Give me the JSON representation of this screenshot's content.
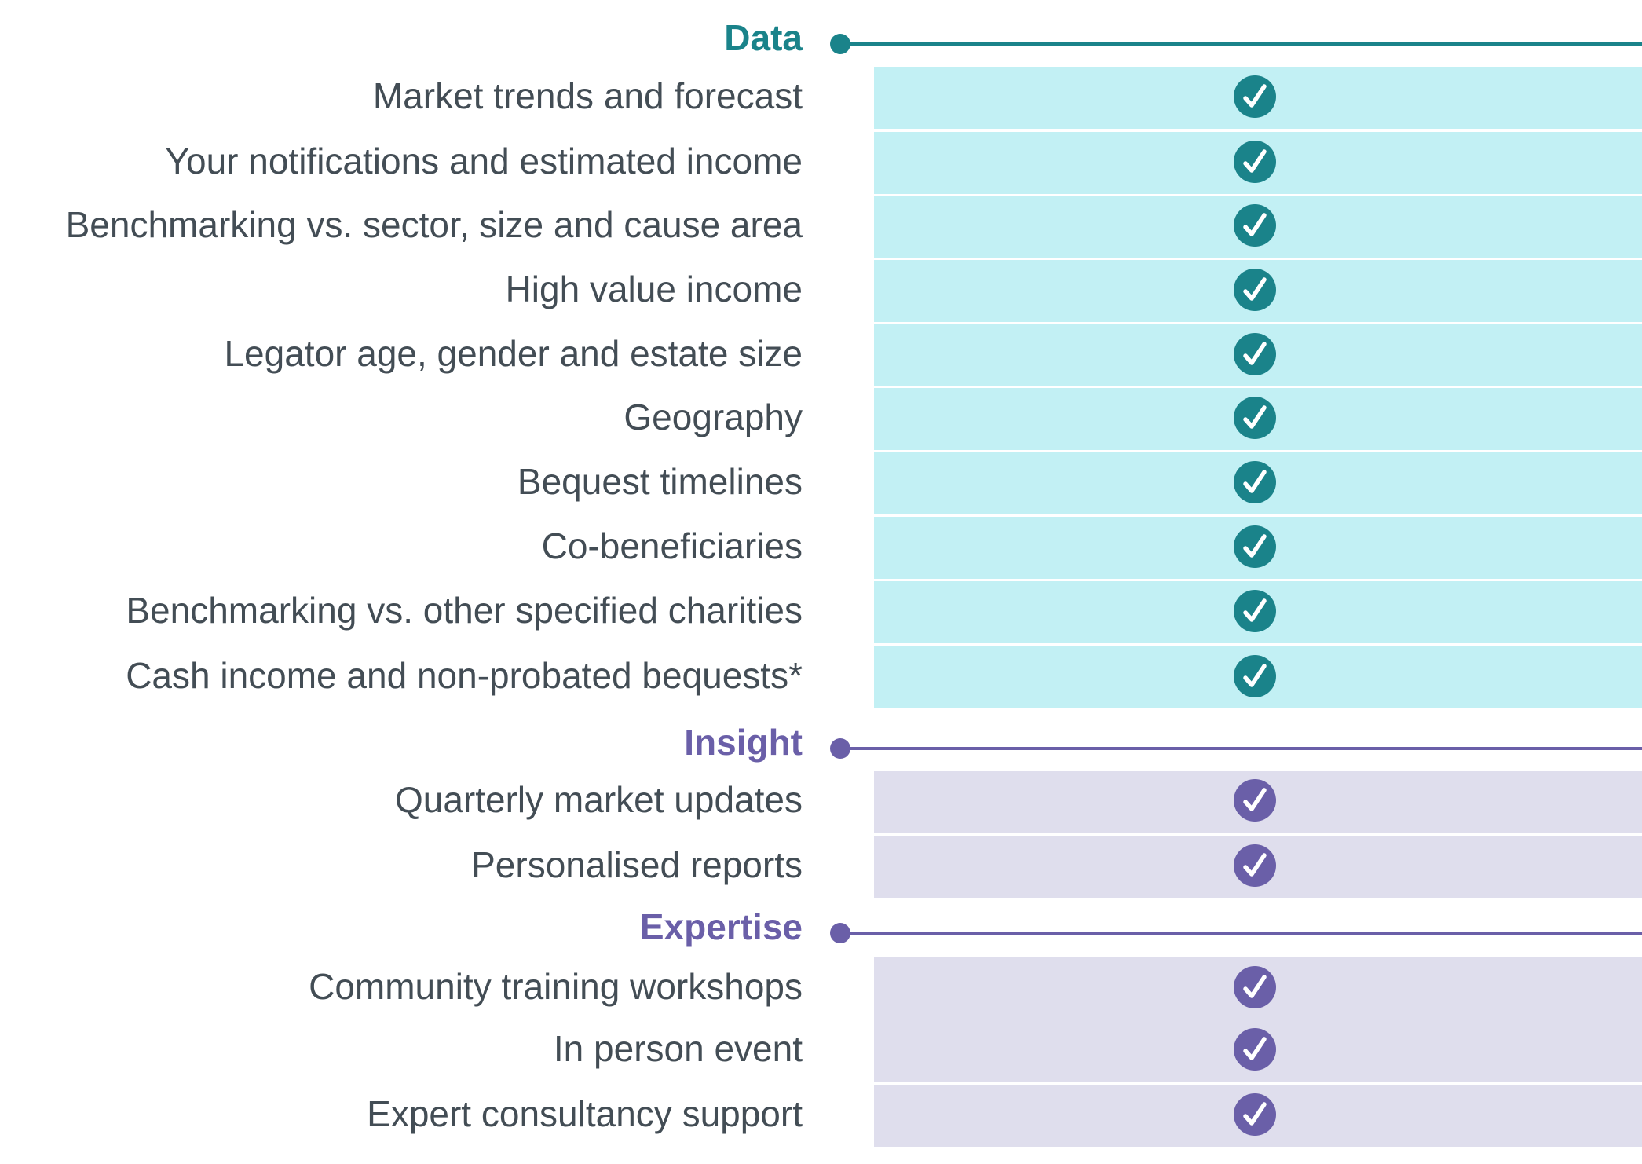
{
  "colors": {
    "data_accent": "#1a838a",
    "data_band": "#c2f0f4",
    "insight_accent": "#6a5fa8",
    "insight_band": "#dfdeed",
    "label_text": "#434d55"
  },
  "sections": [
    {
      "id": "data",
      "title": "Data",
      "accent": "#1a838a",
      "band": "#c2f0f4",
      "rows": [
        {
          "label": "Market trends and forecast",
          "included": true,
          "icon": "check-icon"
        },
        {
          "label": "Your notifications and estimated income",
          "included": true,
          "icon": "check-icon"
        },
        {
          "label": "Benchmarking vs. sector, size and cause area",
          "included": true,
          "icon": "check-icon"
        },
        {
          "label": "High value income",
          "included": true,
          "icon": "check-icon"
        },
        {
          "label": "Legator age, gender and estate size",
          "included": true,
          "icon": "check-icon"
        },
        {
          "label": "Geography",
          "included": true,
          "icon": "check-icon"
        },
        {
          "label": "Bequest timelines",
          "included": true,
          "icon": "check-icon"
        },
        {
          "label": "Co-beneficiaries",
          "included": true,
          "icon": "check-icon"
        },
        {
          "label": "Benchmarking vs. other specified charities",
          "included": true,
          "icon": "check-icon"
        },
        {
          "label": "Cash income and non-probated bequests*",
          "included": true,
          "icon": "check-icon"
        }
      ]
    },
    {
      "id": "insight",
      "title": "Insight",
      "accent": "#6a5fa8",
      "band": "#dfdeed",
      "rows": [
        {
          "label": "Quarterly market updates",
          "included": true,
          "icon": "check-icon"
        },
        {
          "label": "Personalised reports",
          "included": true,
          "icon": "check-icon"
        }
      ]
    },
    {
      "id": "expertise",
      "title": "Expertise",
      "accent": "#6a5fa8",
      "band": "#dfdeed",
      "rows": [
        {
          "label": "Community training workshops",
          "included": true,
          "icon": "check-icon"
        },
        {
          "label": "In person event",
          "included": true,
          "icon": "check-icon"
        },
        {
          "label": "Expert consultancy support",
          "included": true,
          "icon": "check-icon"
        }
      ]
    }
  ]
}
